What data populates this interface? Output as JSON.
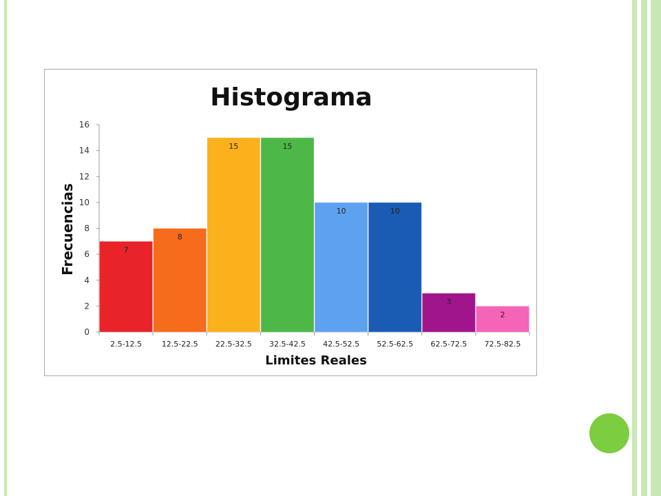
{
  "chart_data": {
    "type": "bar",
    "title": "Histograma",
    "xlabel": "Limites Reales",
    "ylabel": "Frecuencias",
    "ylim": [
      0,
      16
    ],
    "yticks": [
      "0",
      "2",
      "4",
      "6",
      "8",
      "10",
      "12",
      "14",
      "16"
    ],
    "categories": [
      "2.5-12.5",
      "12.5-22.5",
      "22.5-32.5",
      "32.5-42.5",
      "42.5-52.5",
      "52.5-62.5",
      "62.5-72.5",
      "72.5-82.5"
    ],
    "values": [
      7,
      8,
      15,
      15,
      10,
      10,
      3,
      2
    ],
    "data_labels": [
      "7",
      "8",
      "15",
      "15",
      "10",
      "10",
      "3",
      "2"
    ],
    "colors": [
      "#e8242a",
      "#f76b1c",
      "#fbb11b",
      "#4db848",
      "#5da2f0",
      "#1a5cb4",
      "#a0158c",
      "#f564b6"
    ],
    "legend": "none",
    "grid": false
  }
}
